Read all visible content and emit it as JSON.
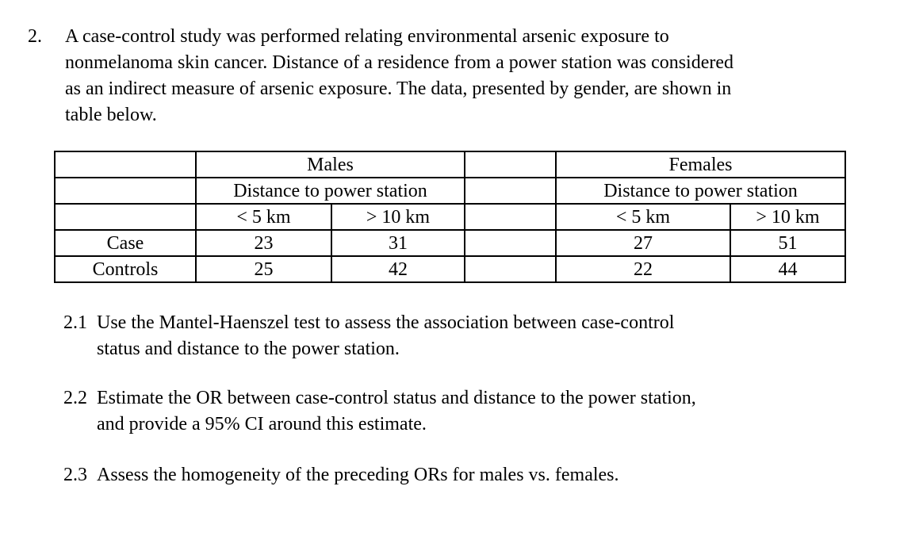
{
  "problem": {
    "number": "2.",
    "intro_lines": [
      "A case-control study was performed relating environmental arsenic exposure to",
      "nonmelanoma skin cancer. Distance of a residence from a power station was considered",
      "as an indirect measure of arsenic exposure. The data, presented by gender, are shown in",
      "table below."
    ]
  },
  "table": {
    "header": {
      "males": "Males",
      "females": "Females",
      "distance_males": "Distance to power station",
      "distance_females": "Distance to power station",
      "males_col1": "< 5 km",
      "males_col2": "> 10 km",
      "females_col1": "< 5 km",
      "females_col2": "> 10 km"
    },
    "rows": [
      {
        "label": "Case",
        "males_lt5": "23",
        "males_gt10": "31",
        "females_lt5": "27",
        "females_gt10": "51"
      },
      {
        "label": "Controls",
        "males_lt5": "25",
        "males_gt10": "42",
        "females_lt5": "22",
        "females_gt10": "44"
      }
    ]
  },
  "questions": [
    {
      "number": "2.1",
      "lines": [
        "Use the Mantel-Haenszel test to assess the association between case-control",
        "status and distance to the power station."
      ]
    },
    {
      "number": "2.2",
      "lines": [
        "Estimate the OR between case-control status and distance to the power station,",
        "and provide a 95% CI around this estimate."
      ]
    },
    {
      "number": "2.3",
      "lines": [
        "Assess the homogeneity of the preceding ORs for males vs. females."
      ]
    }
  ]
}
